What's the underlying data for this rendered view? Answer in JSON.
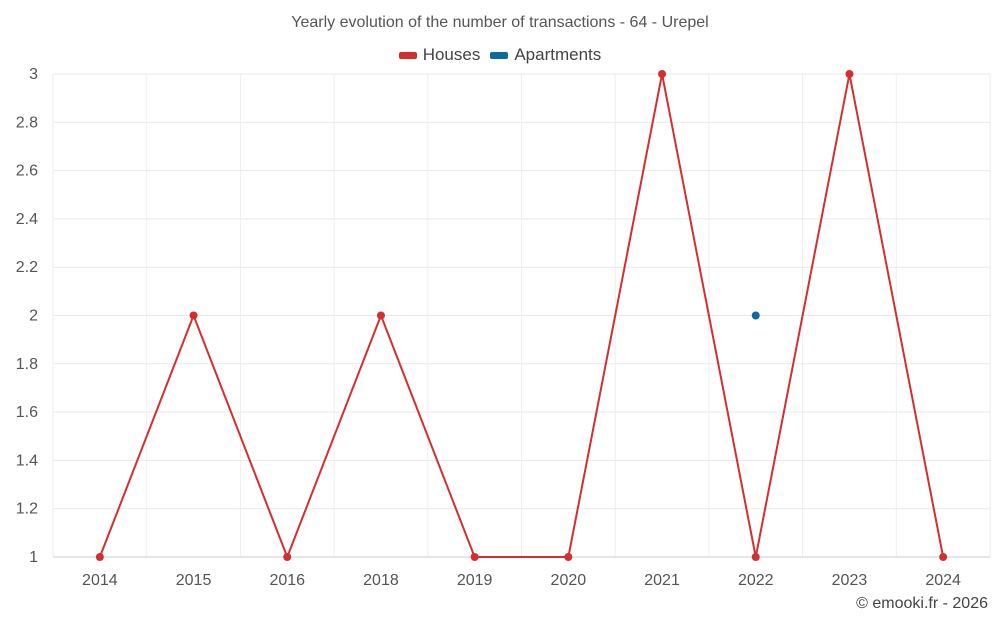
{
  "chart_data": {
    "type": "line",
    "title": "Yearly evolution of the number of transactions - 64 - Urepel",
    "categories": [
      "2014",
      "2015",
      "2016",
      "2018",
      "2019",
      "2020",
      "2021",
      "2022",
      "2023",
      "2024"
    ],
    "series": [
      {
        "name": "Houses",
        "color": "#d32f2f",
        "values": [
          1,
          2,
          1,
          2,
          1,
          1,
          3,
          1,
          3,
          1
        ]
      },
      {
        "name": "Apartments",
        "color": "#0d6aa1",
        "values": [
          null,
          null,
          null,
          null,
          null,
          null,
          null,
          2,
          null,
          null
        ]
      }
    ],
    "ylim": [
      1,
      3
    ],
    "yticks": [
      "1",
      "1.2",
      "1.4",
      "1.6",
      "1.8",
      "2",
      "2.2",
      "2.4",
      "2.6",
      "2.8",
      "3"
    ],
    "xlabel": "",
    "ylabel": "",
    "grid": true,
    "legend_position": "top-center"
  },
  "credit": "© emooki.fr - 2026"
}
